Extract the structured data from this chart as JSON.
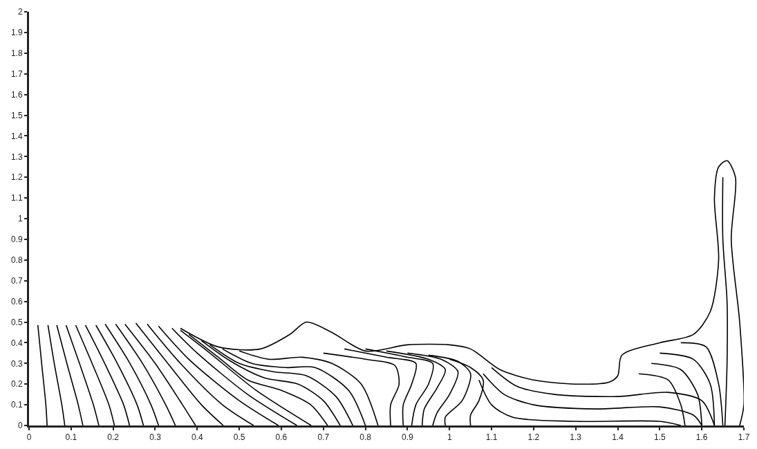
{
  "chart_data": {
    "type": "line",
    "color": "#000000",
    "xlim": [
      0,
      1.7
    ],
    "ylim": [
      0,
      2
    ],
    "xticks": [
      0,
      0.1,
      0.2,
      0.3,
      0.4,
      0.5,
      0.6,
      0.7,
      0.8,
      0.9,
      1,
      1.1,
      1.2,
      1.3,
      1.4,
      1.5,
      1.6,
      1.7
    ],
    "yticks": [
      0,
      0.1,
      0.2,
      0.3,
      0.4,
      0.5,
      0.6,
      0.7,
      0.8,
      0.9,
      1,
      1.1,
      1.2,
      1.3,
      1.4,
      1.5,
      1.6,
      1.7,
      1.8,
      1.9,
      2
    ],
    "line_style": "solid",
    "series": [
      {
        "x": [
          0.021,
          0.03,
          0.04,
          0.043
        ],
        "values": [
          0.485,
          0.3,
          0.1,
          0
        ]
      },
      {
        "x": [
          0.045,
          0.06,
          0.078,
          0.085
        ],
        "values": [
          0.485,
          0.3,
          0.1,
          0
        ]
      },
      {
        "x": [
          0.066,
          0.09,
          0.117,
          0.128
        ],
        "values": [
          0.485,
          0.3,
          0.1,
          0
        ]
      },
      {
        "x": [
          0.088,
          0.12,
          0.153,
          0.166
        ],
        "values": [
          0.485,
          0.3,
          0.1,
          0
        ]
      },
      {
        "x": [
          0.111,
          0.15,
          0.19,
          0.203
        ],
        "values": [
          0.485,
          0.3,
          0.1,
          0
        ]
      },
      {
        "x": [
          0.134,
          0.18,
          0.225,
          0.239
        ],
        "values": [
          0.485,
          0.3,
          0.1,
          0
        ]
      },
      {
        "x": [
          0.159,
          0.21,
          0.257,
          0.272
        ],
        "values": [
          0.485,
          0.3,
          0.1,
          0
        ]
      },
      {
        "x": [
          0.181,
          0.24,
          0.29,
          0.308
        ],
        "values": [
          0.49,
          0.3,
          0.1,
          0
        ]
      },
      {
        "x": [
          0.206,
          0.27,
          0.325,
          0.348
        ],
        "values": [
          0.49,
          0.3,
          0.1,
          0
        ]
      },
      {
        "x": [
          0.228,
          0.3,
          0.365,
          0.396
        ],
        "values": [
          0.49,
          0.3,
          0.1,
          0
        ]
      },
      {
        "x": [
          0.254,
          0.33,
          0.41,
          0.462
        ],
        "values": [
          0.495,
          0.3,
          0.1,
          0
        ]
      },
      {
        "x": [
          0.281,
          0.36,
          0.46,
          0.534
        ],
        "values": [
          0.49,
          0.3,
          0.1,
          0
        ]
      },
      {
        "x": [
          0.308,
          0.38,
          0.5,
          0.593
        ],
        "values": [
          0.48,
          0.32,
          0.12,
          0
        ]
      },
      {
        "x": [
          0.34,
          0.4,
          0.52,
          0.637
        ],
        "values": [
          0.47,
          0.35,
          0.15,
          0
        ]
      },
      {
        "x": [
          0.36,
          0.43,
          0.54,
          0.671
        ],
        "values": [
          0.46,
          0.35,
          0.17,
          0
        ]
      },
      {
        "x": [
          0.38,
          0.45,
          0.52,
          0.6,
          0.67,
          0.71
        ],
        "values": [
          0.44,
          0.33,
          0.22,
          0.17,
          0.1,
          0
        ]
      },
      {
        "x": [
          0.41,
          0.48,
          0.56,
          0.64,
          0.7,
          0.74
        ],
        "values": [
          0.41,
          0.31,
          0.23,
          0.2,
          0.12,
          0
        ]
      },
      {
        "x": [
          0.43,
          0.5,
          0.58,
          0.66,
          0.73,
          0.77
        ],
        "values": [
          0.39,
          0.3,
          0.26,
          0.24,
          0.14,
          0
        ]
      },
      {
        "x": [
          0.46,
          0.53,
          0.61,
          0.68,
          0.76,
          0.8
        ],
        "values": [
          0.37,
          0.3,
          0.28,
          0.28,
          0.17,
          0
        ]
      },
      {
        "x": [
          0.5,
          0.57,
          0.65,
          0.72,
          0.79,
          0.83
        ],
        "values": [
          0.36,
          0.32,
          0.33,
          0.3,
          0.2,
          0
        ]
      },
      {
        "x": [
          0.7,
          0.8,
          0.87,
          0.88,
          0.86,
          0.86
        ],
        "values": [
          0.35,
          0.32,
          0.29,
          0.2,
          0.1,
          0
        ]
      },
      {
        "x": [
          0.75,
          0.85,
          0.92,
          0.91,
          0.89,
          0.89
        ],
        "values": [
          0.37,
          0.33,
          0.3,
          0.2,
          0.1,
          0
        ]
      },
      {
        "x": [
          0.8,
          0.9,
          0.96,
          0.95,
          0.92,
          0.91
        ],
        "values": [
          0.37,
          0.33,
          0.3,
          0.2,
          0.1,
          0
        ]
      },
      {
        "x": [
          0.85,
          0.95,
          0.99,
          0.97,
          0.94,
          0.935
        ],
        "values": [
          0.36,
          0.32,
          0.27,
          0.18,
          0.08,
          0
        ]
      },
      {
        "x": [
          0.9,
          0.98,
          1.02,
          1.0,
          0.97,
          0.96
        ],
        "values": [
          0.35,
          0.32,
          0.26,
          0.15,
          0.06,
          0
        ]
      },
      {
        "x": [
          0.95,
          1.02,
          1.05,
          1.03,
          0.99,
          0.99
        ],
        "values": [
          0.34,
          0.31,
          0.25,
          0.12,
          0.04,
          0
        ]
      },
      {
        "x": [
          1.0,
          1.05,
          1.08,
          1.07,
          1.05,
          1.05
        ],
        "values": [
          0.32,
          0.28,
          0.22,
          0.12,
          0.05,
          0
        ]
      },
      {
        "x": [
          1.07,
          1.1,
          1.15,
          1.3,
          1.5,
          1.55
        ],
        "values": [
          0.22,
          0.1,
          0.04,
          0.02,
          0.02,
          0
        ]
      },
      {
        "x": [
          1.08,
          1.13,
          1.2,
          1.35,
          1.5,
          1.58,
          1.6
        ],
        "values": [
          0.25,
          0.15,
          0.1,
          0.08,
          0.09,
          0.05,
          0
        ]
      },
      {
        "x": [
          1.1,
          1.16,
          1.25,
          1.4,
          1.52,
          1.6,
          1.63
        ],
        "values": [
          0.28,
          0.19,
          0.15,
          0.14,
          0.16,
          0.12,
          0
        ]
      },
      {
        "x": [
          1.45,
          1.52,
          1.55,
          1.56
        ],
        "values": [
          0.25,
          0.22,
          0.1,
          0
        ]
      },
      {
        "x": [
          1.48,
          1.55,
          1.59,
          1.6
        ],
        "values": [
          0.3,
          0.27,
          0.15,
          0
        ]
      },
      {
        "x": [
          1.5,
          1.58,
          1.62,
          1.63
        ],
        "values": [
          0.35,
          0.32,
          0.2,
          0
        ]
      },
      {
        "x": [
          1.55,
          1.61,
          1.64,
          1.65
        ],
        "values": [
          0.4,
          0.38,
          0.2,
          0
        ]
      },
      {
        "x": [
          1.655,
          1.66,
          1.66,
          1.65,
          1.65
        ],
        "values": [
          0,
          0.3,
          0.6,
          0.9,
          1.2
        ]
      },
      {
        "x": [
          0.36,
          0.45,
          0.55,
          0.62,
          0.66,
          0.72,
          0.8,
          0.9,
          1.0,
          1.05,
          1.12,
          1.2,
          1.3,
          1.38,
          1.4,
          1.41,
          1.5,
          1.58,
          1.62,
          1.64,
          1.63,
          1.64,
          1.66,
          1.68,
          1.67,
          1.69,
          1.7,
          1.69
        ],
        "values": [
          0.47,
          0.38,
          0.37,
          0.44,
          0.5,
          0.45,
          0.36,
          0.39,
          0.39,
          0.37,
          0.27,
          0.22,
          0.2,
          0.21,
          0.24,
          0.34,
          0.4,
          0.44,
          0.55,
          0.8,
          1.1,
          1.25,
          1.28,
          1.2,
          0.9,
          0.5,
          0.1,
          0
        ]
      }
    ]
  }
}
